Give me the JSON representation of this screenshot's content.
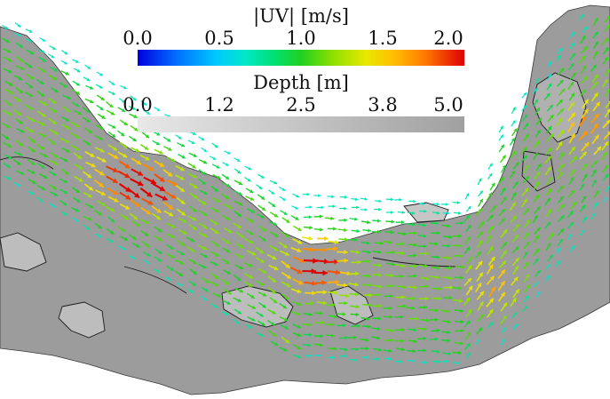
{
  "legend_velocity": {
    "title": "|UV| [m/s]",
    "ticks": [
      "0.0",
      "0.5",
      "1.0",
      "1.5",
      "2.0"
    ],
    "colormap": [
      "#0000e0",
      "#0070ff",
      "#00c8ff",
      "#00e8c8",
      "#00e070",
      "#20d020",
      "#90e000",
      "#e8e800",
      "#ffc000",
      "#ff7a00",
      "#e00000"
    ]
  },
  "legend_depth": {
    "title": "Depth [m]",
    "ticks": [
      "0.0",
      "1.2",
      "2.5",
      "3.8",
      "5.0"
    ],
    "colormap": [
      "#e8e8e8",
      "#a0a0a0"
    ]
  },
  "colors": {
    "river_fill": "#9c9c9c",
    "contour": "#1a1a1a",
    "background": "#ffffff"
  }
}
